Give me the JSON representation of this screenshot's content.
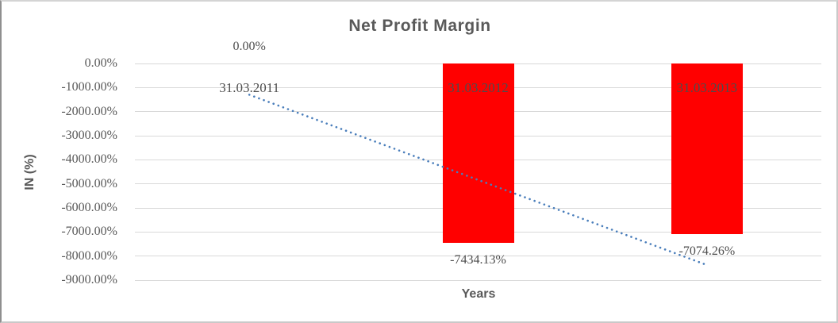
{
  "chart_data": {
    "type": "bar",
    "title": "Net Profit Margin",
    "xlabel": "Years",
    "ylabel": "IN (%)",
    "categories": [
      "31.03.2011",
      "31.03.2012",
      "31.03.2013"
    ],
    "series": [
      {
        "name": "Net Profit Margin",
        "values": [
          0,
          -7434.13,
          -7074.26
        ],
        "data_labels": [
          "0.00%",
          "-7434.13%",
          "-7074.26%"
        ]
      }
    ],
    "ylim": [
      -9000,
      0
    ],
    "ytick_step": 1000,
    "ytick_labels": [
      "0.00%",
      "-1000.00%",
      "-2000.00%",
      "-3000.00%",
      "-4000.00%",
      "-5000.00%",
      "-6000.00%",
      "-7000.00%",
      "-8000.00%",
      "-9000.00%"
    ],
    "grid": true,
    "legend": "none",
    "trendline": {
      "type": "linear",
      "style": "dotted",
      "x": [
        1,
        3
      ],
      "y": [
        -1299.0,
        -8373.3
      ]
    },
    "colors": {
      "bar": "#FF0000",
      "trendline": "#4A7EBB",
      "text": "#595959",
      "gridline": "#D9D9D9",
      "background": "#FFFFFF"
    }
  }
}
